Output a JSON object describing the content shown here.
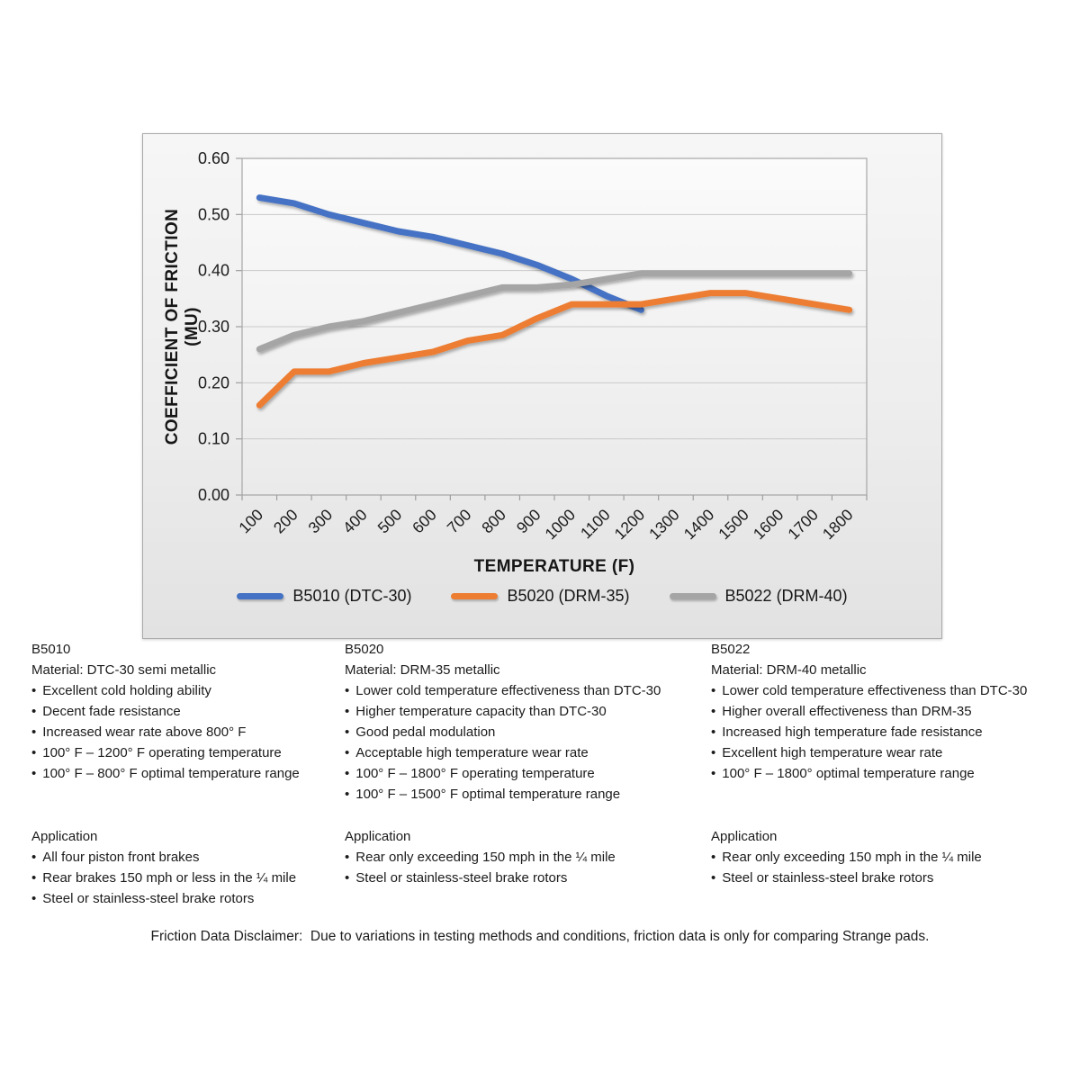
{
  "chart_data": {
    "type": "line",
    "x": [
      100,
      200,
      300,
      400,
      500,
      600,
      700,
      800,
      900,
      1000,
      1100,
      1200,
      1300,
      1400,
      1500,
      1600,
      1700,
      1800
    ],
    "series": [
      {
        "name": "B5010 (DTC-30)",
        "color": "#4472C4",
        "values": [
          0.53,
          0.52,
          0.5,
          0.485,
          0.47,
          0.46,
          0.445,
          0.43,
          0.41,
          0.385,
          0.355,
          0.33
        ]
      },
      {
        "name": "B5020 (DRM-35)",
        "color": "#ED7D31",
        "values": [
          0.16,
          0.22,
          0.22,
          0.235,
          0.245,
          0.255,
          0.275,
          0.285,
          0.315,
          0.34,
          0.34,
          0.34,
          0.35,
          0.36,
          0.36,
          0.35,
          0.34,
          0.33
        ]
      },
      {
        "name": "B5022 (DRM-40)",
        "color": "#A5A5A5",
        "values": [
          0.26,
          0.285,
          0.3,
          0.31,
          0.325,
          0.34,
          0.355,
          0.37,
          0.37,
          0.375,
          0.385,
          0.395,
          0.395,
          0.395,
          0.395,
          0.395,
          0.395,
          0.395
        ]
      }
    ],
    "xlabel": "TEMPERATURE (F)",
    "ylabel": "COEFFICIENT OF FRICTION (MU)",
    "ylim": [
      0,
      0.6
    ],
    "ytick_step": 0.1,
    "grid": true,
    "legend_position": "bottom"
  },
  "columns": [
    {
      "code": "B5010",
      "material": "Material: DTC-30 semi metallic",
      "bullets": [
        "Excellent cold holding ability",
        "Decent fade resistance",
        "Increased wear rate above 800° F",
        "100° F – 1200° F operating temperature",
        "100° F – 800° F optimal temperature range"
      ],
      "application_title": "Application",
      "application_bullets": [
        "All four piston front brakes",
        "Rear brakes 150 mph or less in the ¼ mile",
        "Steel or stainless-steel brake rotors"
      ]
    },
    {
      "code": "B5020",
      "material": "Material: DRM-35 metallic",
      "bullets": [
        "Lower cold temperature effectiveness than DTC-30",
        "Higher temperature capacity than DTC-30",
        "Good pedal modulation",
        "Acceptable high temperature wear rate",
        "100° F – 1800° F operating temperature",
        "100° F – 1500° F optimal temperature range"
      ],
      "application_title": "Application",
      "application_bullets": [
        "Rear only exceeding 150 mph in the ¼ mile",
        "Steel or stainless-steel brake rotors"
      ]
    },
    {
      "code": "B5022",
      "material": "Material: DRM-40 metallic",
      "bullets": [
        "Lower cold temperature effectiveness than DTC-30",
        "Higher overall effectiveness than DRM-35",
        "Increased high temperature fade resistance",
        "Excellent high temperature wear rate",
        "100° F – 1800° optimal temperature range"
      ],
      "application_title": "Application",
      "application_bullets": [
        "Rear only exceeding 150 mph in the ¼ mile",
        "Steel or stainless-steel brake rotors"
      ]
    }
  ],
  "disclaimer": "Friction Data Disclaimer:  Due to variations in testing methods and conditions, friction data is only for comparing Strange pads."
}
